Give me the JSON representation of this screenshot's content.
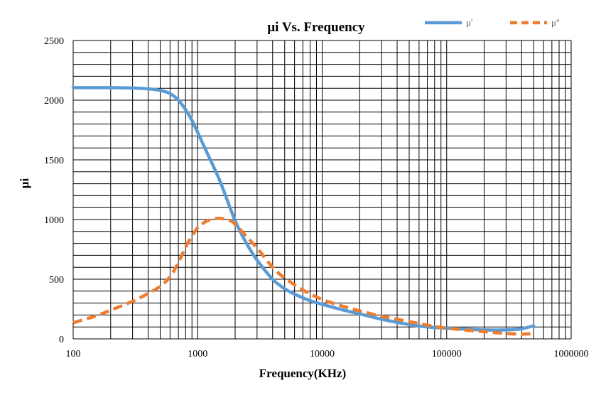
{
  "chart_data": {
    "type": "line",
    "title": "μi Vs. Frequency",
    "xlabel": "Frequency(KHz)",
    "ylabel": "μi",
    "x_scale": "log",
    "xlim": [
      100,
      1000000
    ],
    "ylim": [
      0,
      2500
    ],
    "x_ticks": [
      "100",
      "1000",
      "10000",
      "100000",
      "1000000"
    ],
    "y_ticks": [
      "0",
      "500",
      "1000",
      "1500",
      "2000",
      "2500"
    ],
    "grid": true,
    "legend_position": "top-right",
    "series": [
      {
        "name": "μ'",
        "color": "#5b9bd5",
        "style": "solid",
        "points": [
          [
            100,
            2105
          ],
          [
            200,
            2105
          ],
          [
            300,
            2102
          ],
          [
            400,
            2095
          ],
          [
            500,
            2082
          ],
          [
            600,
            2055
          ],
          [
            700,
            2000
          ],
          [
            800,
            1920
          ],
          [
            900,
            1830
          ],
          [
            1000,
            1730
          ],
          [
            1200,
            1550
          ],
          [
            1500,
            1330
          ],
          [
            2000,
            990
          ],
          [
            2500,
            790
          ],
          [
            3000,
            660
          ],
          [
            4000,
            500
          ],
          [
            5000,
            420
          ],
          [
            6000,
            375
          ],
          [
            8000,
            320
          ],
          [
            10000,
            290
          ],
          [
            15000,
            240
          ],
          [
            20000,
            210
          ],
          [
            30000,
            165
          ],
          [
            50000,
            120
          ],
          [
            70000,
            100
          ],
          [
            100000,
            90
          ],
          [
            200000,
            75
          ],
          [
            300000,
            75
          ],
          [
            400000,
            85
          ],
          [
            500000,
            110
          ]
        ]
      },
      {
        "name": "μ''",
        "color": "#ed7d31",
        "style": "dashed",
        "points": [
          [
            100,
            135
          ],
          [
            150,
            190
          ],
          [
            200,
            240
          ],
          [
            300,
            315
          ],
          [
            400,
            380
          ],
          [
            500,
            440
          ],
          [
            600,
            520
          ],
          [
            700,
            640
          ],
          [
            800,
            770
          ],
          [
            900,
            860
          ],
          [
            1000,
            930
          ],
          [
            1200,
            990
          ],
          [
            1500,
            1010
          ],
          [
            1800,
            990
          ],
          [
            2000,
            960
          ],
          [
            3000,
            760
          ],
          [
            4000,
            600
          ],
          [
            5000,
            510
          ],
          [
            7000,
            410
          ],
          [
            10000,
            330
          ],
          [
            15000,
            270
          ],
          [
            20000,
            235
          ],
          [
            30000,
            190
          ],
          [
            50000,
            145
          ],
          [
            70000,
            115
          ],
          [
            100000,
            90
          ],
          [
            200000,
            60
          ],
          [
            300000,
            45
          ],
          [
            400000,
            40
          ],
          [
            500000,
            45
          ]
        ]
      }
    ]
  }
}
